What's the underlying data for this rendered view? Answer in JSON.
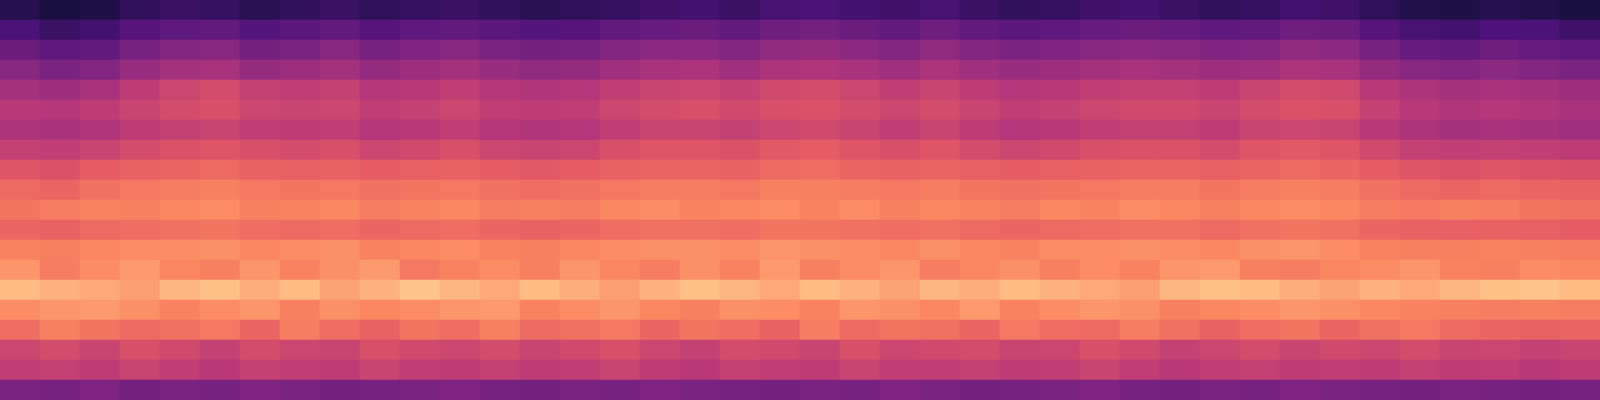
{
  "chart_data": {
    "type": "heatmap",
    "tick_labels": false,
    "zlim": [
      0,
      10
    ],
    "cells": [
      [
        1.5,
        1.2,
        1.3,
        1.8,
        2.0,
        1.9,
        1.6,
        1.8,
        2.0,
        1.7,
        1.9,
        2.0,
        1.8,
        1.6,
        1.7,
        1.9,
        2.1,
        2.2,
        2.0,
        2.3,
        2.4,
        2.2,
        2.1,
        2.3,
        2.0,
        1.8,
        1.9,
        2.1,
        2.2,
        2.0,
        1.8,
        1.9,
        2.2,
        2.1,
        1.7,
        1.4,
        1.3,
        1.5,
        1.4,
        1.2
      ],
      [
        2.4,
        2.0,
        2.2,
        2.7,
        2.9,
        3.0,
        2.6,
        2.8,
        3.0,
        2.7,
        2.9,
        3.0,
        2.8,
        2.6,
        2.7,
        3.0,
        3.1,
        3.2,
        3.0,
        3.3,
        3.4,
        3.2,
        3.0,
        3.3,
        3.0,
        2.8,
        2.9,
        3.1,
        3.2,
        3.1,
        2.9,
        3.0,
        3.3,
        3.2,
        2.7,
        2.3,
        2.2,
        2.5,
        2.4,
        2.1
      ],
      [
        3.2,
        2.9,
        3.0,
        3.5,
        3.8,
        3.9,
        3.4,
        3.6,
        3.9,
        3.5,
        3.7,
        3.9,
        3.6,
        3.4,
        3.5,
        3.8,
        4.0,
        4.0,
        3.8,
        4.1,
        4.2,
        4.0,
        3.8,
        4.1,
        3.8,
        3.6,
        3.7,
        3.9,
        4.0,
        3.9,
        3.7,
        3.8,
        4.1,
        4.0,
        3.5,
        3.1,
        3.0,
        3.3,
        3.1,
        2.9
      ],
      [
        3.9,
        3.6,
        3.8,
        4.3,
        4.6,
        4.7,
        4.2,
        4.4,
        4.6,
        4.2,
        4.4,
        4.6,
        4.3,
        4.1,
        4.2,
        4.5,
        4.7,
        4.8,
        4.5,
        4.8,
        4.9,
        4.7,
        4.5,
        4.8,
        4.5,
        4.3,
        4.4,
        4.6,
        4.7,
        4.6,
        4.4,
        4.5,
        4.8,
        4.7,
        4.2,
        3.9,
        3.8,
        4.0,
        3.8,
        3.6
      ],
      [
        4.6,
        4.4,
        4.7,
        5.2,
        5.6,
        5.8,
        5.4,
        5.3,
        5.4,
        5.0,
        5.1,
        5.3,
        5.0,
        4.9,
        5.0,
        5.3,
        5.5,
        5.6,
        5.4,
        5.7,
        5.8,
        5.6,
        5.3,
        5.5,
        5.2,
        5.0,
        5.1,
        5.3,
        5.4,
        5.4,
        5.2,
        5.5,
        5.8,
        5.7,
        5.1,
        4.8,
        4.6,
        4.7,
        4.6,
        4.4
      ],
      [
        5.1,
        5.0,
        5.2,
        5.5,
        5.8,
        5.9,
        5.6,
        5.5,
        5.6,
        5.3,
        5.4,
        5.6,
        5.3,
        5.2,
        5.3,
        5.6,
        5.8,
        5.9,
        5.7,
        5.9,
        6.0,
        5.8,
        5.6,
        5.8,
        5.5,
        5.3,
        5.4,
        5.6,
        5.7,
        5.7,
        5.5,
        5.8,
        6.0,
        5.9,
        5.4,
        5.1,
        4.9,
        5.0,
        4.9,
        4.7
      ],
      [
        4.8,
        4.7,
        4.9,
        5.2,
        5.4,
        5.5,
        5.3,
        5.2,
        5.3,
        5.0,
        5.1,
        5.3,
        5.0,
        4.9,
        5.0,
        5.3,
        5.5,
        5.5,
        5.4,
        5.6,
        5.7,
        5.5,
        5.3,
        5.5,
        5.2,
        5.0,
        5.1,
        5.3,
        5.4,
        5.4,
        5.2,
        5.5,
        5.6,
        5.5,
        5.1,
        4.8,
        4.6,
        4.7,
        4.6,
        4.5
      ],
      [
        5.4,
        5.3,
        5.5,
        5.8,
        6.0,
        6.1,
        5.9,
        5.8,
        5.9,
        5.6,
        5.7,
        5.9,
        5.6,
        5.5,
        5.6,
        5.9,
        6.1,
        6.1,
        6.0,
        6.2,
        6.3,
        6.1,
        5.9,
        6.1,
        5.8,
        5.6,
        5.7,
        5.9,
        6.0,
        6.0,
        5.8,
        6.1,
        6.2,
        6.1,
        5.7,
        5.4,
        5.3,
        5.4,
        5.3,
        5.2
      ],
      [
        6.1,
        6.0,
        6.3,
        6.5,
        6.6,
        6.7,
        6.5,
        6.4,
        6.5,
        6.3,
        6.4,
        6.5,
        6.3,
        6.2,
        6.3,
        6.5,
        6.6,
        6.6,
        6.5,
        6.7,
        6.8,
        6.6,
        6.5,
        6.6,
        6.4,
        6.3,
        6.4,
        6.5,
        6.6,
        6.6,
        6.4,
        6.6,
        6.7,
        6.6,
        6.3,
        6.1,
        6.0,
        6.1,
        6.0,
        5.9
      ],
      [
        6.7,
        6.6,
        6.9,
        7.1,
        7.2,
        7.3,
        7.1,
        7.0,
        7.1,
        6.9,
        7.0,
        7.1,
        6.9,
        6.8,
        6.9,
        7.1,
        7.2,
        7.2,
        7.1,
        7.3,
        7.3,
        7.2,
        7.1,
        7.2,
        7.0,
        6.9,
        7.0,
        7.1,
        7.2,
        7.2,
        7.0,
        7.2,
        7.3,
        7.2,
        6.9,
        6.7,
        6.6,
        6.7,
        6.6,
        6.5
      ],
      [
        7.0,
        7.2,
        7.4,
        7.3,
        7.5,
        7.6,
        7.3,
        7.4,
        7.5,
        7.2,
        7.4,
        7.5,
        7.2,
        7.3,
        7.2,
        7.5,
        7.6,
        7.4,
        7.5,
        7.6,
        7.4,
        7.6,
        7.3,
        7.5,
        7.4,
        7.2,
        7.5,
        7.4,
        7.6,
        7.5,
        7.3,
        7.5,
        7.6,
        7.5,
        7.2,
        7.1,
        7.3,
        7.2,
        7.0,
        6.9
      ],
      [
        6.6,
        6.5,
        6.7,
        6.8,
        6.9,
        7.0,
        6.8,
        6.7,
        6.8,
        6.6,
        6.7,
        6.8,
        6.6,
        6.5,
        6.6,
        6.8,
        6.9,
        6.9,
        6.8,
        7.0,
        7.0,
        6.9,
        6.8,
        6.9,
        6.7,
        6.6,
        6.7,
        6.8,
        6.9,
        6.9,
        6.7,
        6.9,
        7.0,
        6.9,
        6.6,
        6.5,
        6.4,
        6.5,
        6.4,
        6.3
      ],
      [
        7.4,
        7.3,
        7.5,
        7.6,
        7.6,
        7.7,
        7.5,
        7.6,
        7.7,
        7.4,
        7.5,
        7.6,
        7.4,
        7.3,
        7.5,
        7.6,
        7.7,
        7.7,
        7.6,
        7.8,
        7.7,
        7.6,
        7.5,
        7.7,
        7.5,
        7.4,
        7.6,
        7.6,
        7.7,
        7.6,
        7.5,
        7.7,
        7.8,
        7.6,
        7.4,
        7.3,
        7.3,
        7.4,
        7.3,
        7.2
      ],
      [
        7.8,
        7.2,
        7.6,
        7.9,
        7.5,
        7.3,
        7.8,
        7.4,
        7.7,
        7.9,
        7.1,
        7.4,
        7.6,
        7.3,
        7.8,
        7.5,
        7.2,
        7.7,
        7.4,
        7.9,
        7.3,
        7.6,
        7.8,
        7.2,
        7.5,
        7.7,
        7.3,
        7.6,
        7.4,
        7.8,
        7.9,
        7.3,
        7.2,
        7.5,
        7.6,
        7.8,
        7.4,
        7.3,
        7.6,
        7.5
      ],
      [
        8.6,
        8.4,
        8.2,
        8.0,
        8.5,
        8.7,
        8.3,
        8.6,
        8.1,
        8.4,
        8.8,
        8.5,
        8.2,
        8.6,
        8.3,
        8.0,
        8.4,
        8.7,
        8.5,
        8.2,
        8.6,
        8.4,
        8.1,
        8.5,
        8.3,
        8.6,
        8.4,
        8.2,
        8.0,
        8.5,
        8.7,
        8.6,
        8.3,
        8.1,
        8.4,
        8.2,
        8.5,
        8.7,
        8.8,
        8.6
      ],
      [
        7.6,
        7.8,
        7.9,
        7.7,
        7.4,
        7.6,
        7.8,
        7.3,
        7.7,
        7.5,
        7.6,
        7.8,
        7.9,
        7.4,
        7.6,
        7.8,
        7.5,
        7.3,
        7.7,
        7.6,
        7.4,
        7.8,
        7.7,
        7.5,
        7.9,
        7.4,
        7.6,
        7.8,
        7.7,
        7.3,
        7.5,
        7.6,
        7.8,
        7.7,
        7.5,
        7.4,
        7.3,
        7.2,
        7.3,
        7.2
      ],
      [
        6.8,
        7.3,
        7.0,
        6.7,
        6.9,
        7.1,
        6.6,
        7.2,
        6.8,
        6.5,
        7.0,
        6.8,
        7.3,
        6.7,
        6.9,
        7.1,
        6.6,
        7.0,
        6.8,
        6.5,
        7.2,
        6.7,
        7.0,
        6.9,
        6.6,
        7.1,
        6.8,
        6.7,
        7.2,
        6.9,
        6.5,
        6.8,
        7.0,
        6.6,
        6.9,
        7.1,
        6.7,
        6.6,
        6.5,
        6.6
      ],
      [
        5.6,
        5.8,
        5.5,
        5.9,
        5.7,
        5.4,
        5.8,
        5.6,
        5.5,
        5.9,
        5.7,
        5.6,
        5.8,
        5.5,
        5.7,
        5.9,
        5.6,
        5.4,
        5.8,
        5.7,
        5.5,
        5.9,
        5.6,
        5.7,
        5.8,
        5.5,
        5.6,
        5.9,
        5.7,
        5.4,
        5.6,
        5.8,
        5.5,
        5.7,
        5.6,
        5.8,
        5.5,
        5.6,
        5.4,
        5.5
      ],
      [
        5.3,
        5.4,
        5.2,
        5.5,
        5.3,
        5.1,
        5.4,
        5.3,
        5.2,
        5.5,
        5.3,
        5.2,
        5.4,
        5.2,
        5.3,
        5.5,
        5.2,
        5.1,
        5.4,
        5.3,
        5.2,
        5.5,
        5.3,
        5.3,
        5.4,
        5.2,
        5.3,
        5.5,
        5.3,
        5.1,
        5.3,
        5.4,
        5.2,
        5.3,
        5.2,
        5.4,
        5.2,
        5.3,
        5.1,
        5.2
      ],
      [
        3.6,
        3.5,
        3.7,
        3.4,
        3.6,
        3.5,
        3.7,
        3.6,
        3.4,
        3.5,
        3.6,
        3.7,
        3.5,
        3.4,
        3.6,
        3.5,
        3.7,
        3.6,
        3.5,
        3.4,
        3.6,
        3.5,
        3.7,
        3.6,
        3.4,
        3.5,
        3.6,
        3.7,
        3.5,
        3.4,
        3.6,
        3.5,
        3.7,
        3.6,
        3.5,
        3.4,
        3.6,
        3.5,
        3.4,
        3.5
      ]
    ]
  }
}
